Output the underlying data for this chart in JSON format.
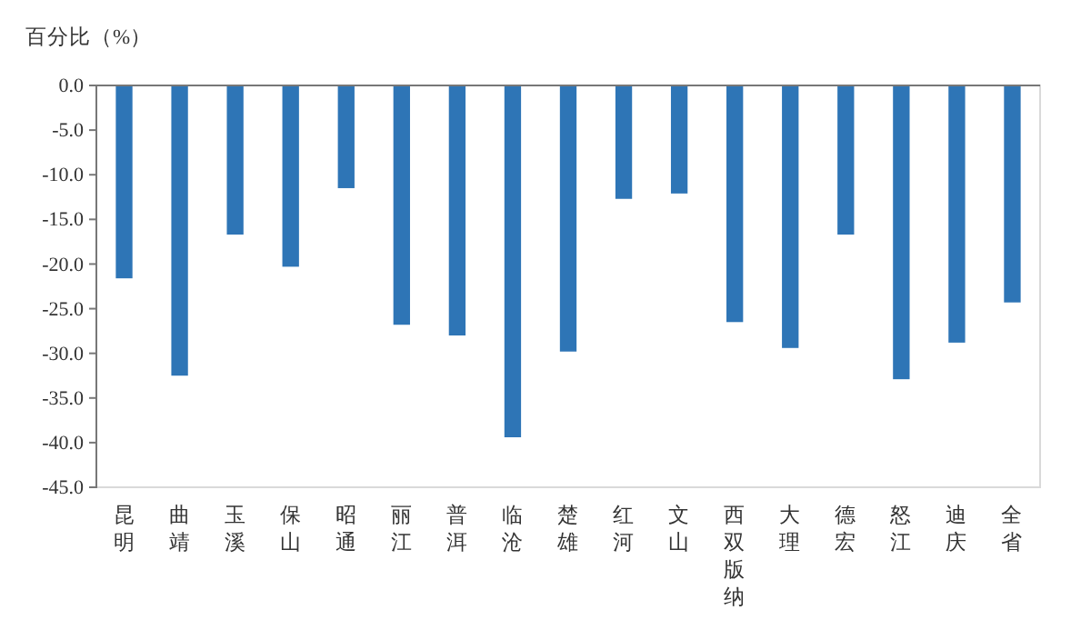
{
  "chart_data": {
    "type": "bar",
    "ylabel": "百分比（%）",
    "categories": [
      "昆明",
      "曲靖",
      "玉溪",
      "保山",
      "昭通",
      "丽江",
      "普洱",
      "临沧",
      "楚雄",
      "红河",
      "文山",
      "西双版纳",
      "大理",
      "德宏",
      "怒江",
      "迪庆",
      "全省"
    ],
    "values": [
      -21.6,
      -32.5,
      -16.7,
      -20.3,
      -11.5,
      -26.8,
      -28.0,
      -39.4,
      -29.8,
      -12.7,
      -12.1,
      -26.5,
      -29.4,
      -16.7,
      -32.9,
      -28.8,
      -24.3
    ],
    "color": "#2e75b6",
    "ylim": [
      -45,
      0
    ],
    "yticks": [
      {
        "value": 0,
        "label": "0.0"
      },
      {
        "value": -5,
        "label": "-5.0"
      },
      {
        "value": -10,
        "label": "-10.0"
      },
      {
        "value": -15,
        "label": "-15.0"
      },
      {
        "value": -20,
        "label": "-20.0"
      },
      {
        "value": -25,
        "label": "-25.0"
      },
      {
        "value": -30,
        "label": "-30.0"
      },
      {
        "value": -35,
        "label": "-35.0"
      },
      {
        "value": -40,
        "label": "-40.0"
      },
      {
        "value": -45,
        "label": "-45.0"
      }
    ]
  }
}
